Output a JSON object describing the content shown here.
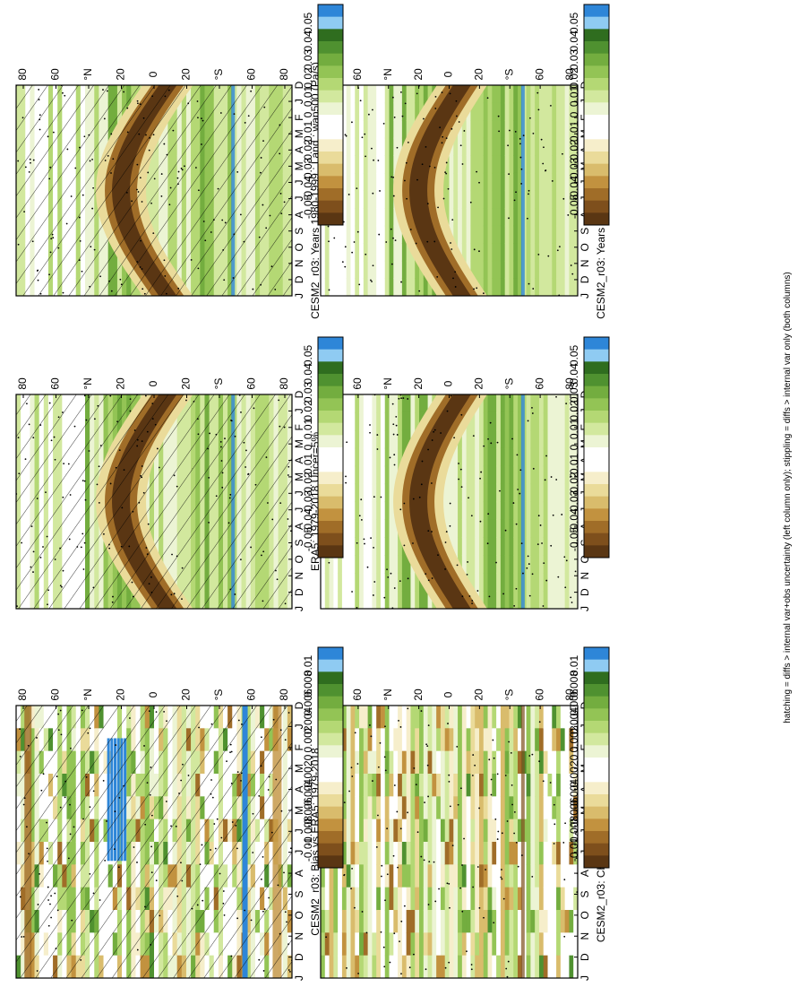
{
  "footnote": "hatching = diffs > internal var+obs uncertainty (left column only); stippling = diffs > internal var only (both columns)",
  "month_labels": [
    "D",
    "J",
    "F",
    "M",
    "A",
    "M",
    "J",
    "J",
    "A",
    "S",
    "O",
    "N",
    "D",
    "J"
  ],
  "lat_labels": [
    "80",
    "60",
    "°N",
    "20",
    "0",
    "20",
    "°S",
    "60",
    "80"
  ],
  "mean_scale": {
    "labels": [
      "0.05",
      "0.04",
      "0.03",
      "0.02",
      "0.01",
      "0",
      "-0.01",
      "-0.02",
      "-0.03",
      "-0.04",
      "-0.05"
    ],
    "colors": [
      "#2e86d8",
      "#8fcbf2",
      "#2f6d1f",
      "#4f9130",
      "#73ad3f",
      "#93c455",
      "#b4d874",
      "#d2e89e",
      "#ecf4d4",
      "#ffffff",
      "#ffffff",
      "#f6eecb",
      "#eadb9a",
      "#d9bc6c",
      "#c2923f",
      "#a06d28",
      "#7e4f1c",
      "#5a3613"
    ]
  },
  "diff_scale": {
    "labels": [
      "0.01",
      "0.008",
      "0.006",
      "0.004",
      "0.002",
      "0",
      "-0.002",
      "-0.004",
      "-0.006",
      "-0.008",
      "-0.01"
    ],
    "colors": [
      "#2e86d8",
      "#8fcbf2",
      "#2f6d1f",
      "#4f9130",
      "#73ad3f",
      "#93c455",
      "#b4d874",
      "#d2e89e",
      "#ecf4d4",
      "#ffffff",
      "#ffffff",
      "#f6eecb",
      "#eadb9a",
      "#d9bc6c",
      "#c2923f",
      "#a06d28",
      "#7e4f1c",
      "#5a3613"
    ]
  },
  "chart_data": [
    {
      "type": "heatmap",
      "title": "CESM2_r03: Years 1980-1999 : Land : wap500 (Pa/s)",
      "x": [
        "D",
        "J",
        "F",
        "M",
        "A",
        "M",
        "J",
        "J",
        "A",
        "S",
        "O",
        "N",
        "D",
        "J"
      ],
      "y_ticks": [
        "80",
        "60",
        "°N",
        "20",
        "0",
        "20",
        "°S",
        "60",
        "80"
      ],
      "colorbar": "mean",
      "hatching": true,
      "stippling": true
    },
    {
      "type": "heatmap",
      "title": "CESM2_r03: Years 1980-1999 : Land : wap500 (Pa/s)",
      "x": [
        "D",
        "J",
        "F",
        "M",
        "A",
        "M",
        "J",
        "J",
        "A",
        "S",
        "O",
        "N",
        "D",
        "J"
      ],
      "y_ticks": [
        "80",
        "60",
        "°N",
        "20",
        "0",
        "20",
        "°S",
        "60",
        "80"
      ],
      "colorbar": "mean",
      "hatching": false,
      "stippling": true
    },
    {
      "type": "heatmap",
      "title": "ERA5: 1979-2018 Uncer=5%",
      "x": [
        "D",
        "J",
        "F",
        "M",
        "A",
        "M",
        "J",
        "J",
        "A",
        "S",
        "O",
        "N",
        "D",
        "J"
      ],
      "y_ticks": [
        "80",
        "60",
        "°N",
        "20",
        "0",
        "20",
        "°S",
        "60",
        "80"
      ],
      "colorbar": "mean",
      "hatching": true,
      "stippling": true
    },
    {
      "type": "heatmap",
      "title": "CESM2-WACCM",
      "x": [
        "D",
        "J",
        "F",
        "M",
        "A",
        "M",
        "J",
        "J",
        "A",
        "S",
        "O",
        "N",
        "D",
        "J"
      ],
      "y_ticks": [
        "80",
        "60",
        "°N",
        "20",
        "0",
        "20",
        "°S",
        "60",
        "80"
      ],
      "colorbar": "mean",
      "hatching": false,
      "stippling": true
    },
    {
      "type": "heatmap",
      "title": "CESM2_r03: Bias vs ERA5: 1979-2018",
      "x": [
        "D",
        "J",
        "F",
        "M",
        "A",
        "M",
        "J",
        "J",
        "A",
        "S",
        "O",
        "N",
        "D",
        "J"
      ],
      "y_ticks": [
        "80",
        "60",
        "°N",
        "20",
        "0",
        "20",
        "°S",
        "60",
        "80"
      ],
      "colorbar": "diff",
      "hatching": true,
      "stippling": true
    },
    {
      "type": "heatmap",
      "title": "CESM2_r03: Change vs CESM2-WACCM",
      "x": [
        "D",
        "J",
        "F",
        "M",
        "A",
        "M",
        "J",
        "J",
        "A",
        "S",
        "O",
        "N",
        "D",
        "J"
      ],
      "y_ticks": [
        "80",
        "60",
        "°N",
        "20",
        "0",
        "20",
        "°S",
        "60",
        "80"
      ],
      "colorbar": "diff",
      "hatching": false,
      "stippling": true
    }
  ]
}
